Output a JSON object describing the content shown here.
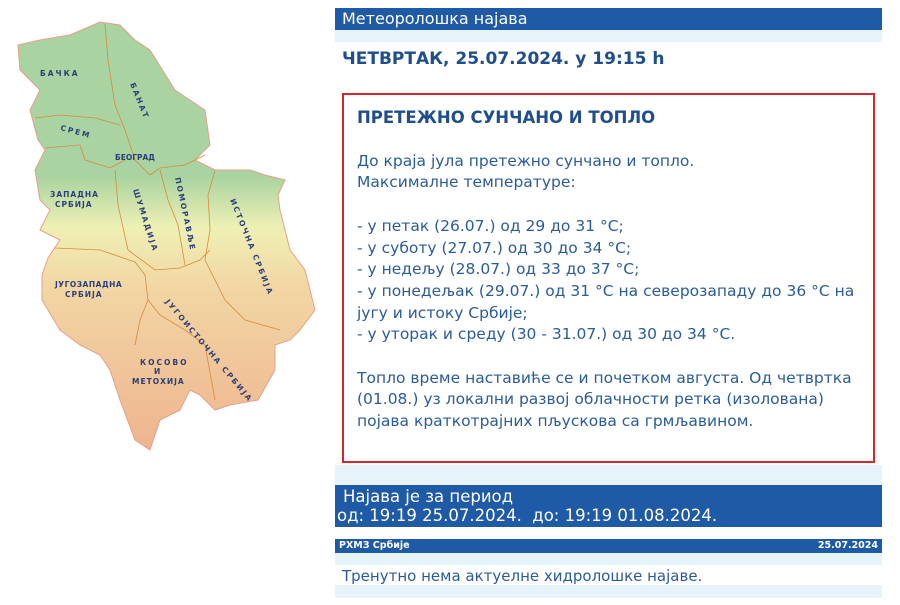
{
  "map": {
    "regions": [
      "БАЧКА",
      "БАНАТ",
      "СРЕМ",
      "БЕОГРАД",
      "ЗАПАДНА",
      "СРБИЈА",
      "ШУМАДИЈА",
      "ПОМОРАВЉЕ",
      "ИСТОЧНА СРБИЈА",
      "ЈУГОЗАПАДНА",
      "СРБИЈА",
      "ЈУГОИСТОЧНА СРБИЈА",
      "КОСОВО",
      "И",
      "МЕТОХИЈА"
    ],
    "colors": {
      "lowland": "#a9d3a0",
      "hills": "#eef0b4",
      "mountains": "#eeb48e",
      "border": "#d98a3a"
    }
  },
  "header": {
    "title": "Метеоролошка најава"
  },
  "issued": "ЧЕТВРТАК, 25.07.2024. у 19:15 h",
  "forecast": {
    "title": "ПРЕТЕЖНО СУНЧАНО И ТОПЛО",
    "intro": [
      "До краја јула претежно сунчано и топло.",
      "Максималне температуре:"
    ],
    "days": [
      "- у петак (26.07.) од 29 до 31 °C;",
      "- у суботу (27.07.) од 30 до 34 °C;",
      "- у недељу (28.07.) од 33 до 37 °C;",
      "- у понедељак (29.07.) од 31 °C на северозападу до 36 °C на југу и истоку Србије;",
      "- у уторак и среду (30 - 31.07.) од 30 до 34 °C."
    ],
    "outro": "Топло време наставиће се и почетком августа. Од четвртка (01.08.) уз локални развој облачности ретка (изолована) појава краткотрајних пљускова са грмљавином."
  },
  "period": {
    "label": "Најава је за период",
    "range": "од: 19:19 25.07.2024.  до: 19:19 01.08.2024."
  },
  "footer": {
    "source": "РХМЗ Србије",
    "date": "25.07.2024"
  },
  "hydro": {
    "message": "Тренутно нема актуелне хидролошке најаве."
  },
  "colors": {
    "accent": "#1f5aa6",
    "band": "#e6f4fa",
    "alert_border": "#d6252b",
    "text": "#2a5c9a"
  }
}
